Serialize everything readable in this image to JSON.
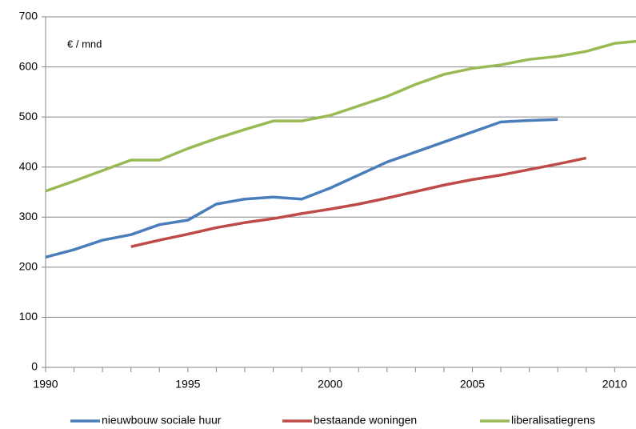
{
  "chart_data": {
    "type": "line",
    "annotation": "€ / mnd",
    "x": [
      1990,
      1991,
      1992,
      1993,
      1994,
      1995,
      1996,
      1997,
      1998,
      1999,
      2000,
      2001,
      2002,
      2003,
      2004,
      2005,
      2006,
      2007,
      2008,
      2009,
      2010,
      2010.75
    ],
    "series": [
      {
        "name": "nieuwbouw sociale huur",
        "color": "#4a7ebb",
        "values": [
          220,
          235,
          254,
          265,
          285,
          294,
          326,
          336,
          340,
          336,
          358,
          384,
          410,
          430,
          450,
          470,
          490,
          493,
          495,
          null,
          null,
          null
        ]
      },
      {
        "name": "bestaande woningen",
        "color": "#be4b48",
        "values": [
          null,
          null,
          null,
          241,
          254,
          266,
          279,
          289,
          297,
          307,
          316,
          326,
          338,
          351,
          364,
          375,
          384,
          395,
          406,
          418,
          null,
          null
        ]
      },
      {
        "name": "liberalisatiegrens",
        "color": "#98b954",
        "values": [
          352,
          372,
          393,
          414,
          414,
          437,
          457,
          475,
          492,
          492,
          503,
          522,
          541,
          565,
          585,
          597,
          604,
          615,
          621,
          631,
          647,
          651
        ]
      }
    ],
    "xlim": [
      1990,
      2010.75
    ],
    "xticks": [
      1990,
      1995,
      2000,
      2005,
      2010
    ],
    "xminorticks": [
      1991,
      1992,
      1993,
      1994,
      1996,
      1997,
      1998,
      1999,
      2001,
      2002,
      2003,
      2004,
      2006,
      2007,
      2008,
      2009
    ],
    "ylim": [
      0,
      700
    ],
    "yticks": [
      0,
      100,
      200,
      300,
      400,
      500,
      600,
      700
    ],
    "grid": true,
    "legend": "bottom"
  }
}
